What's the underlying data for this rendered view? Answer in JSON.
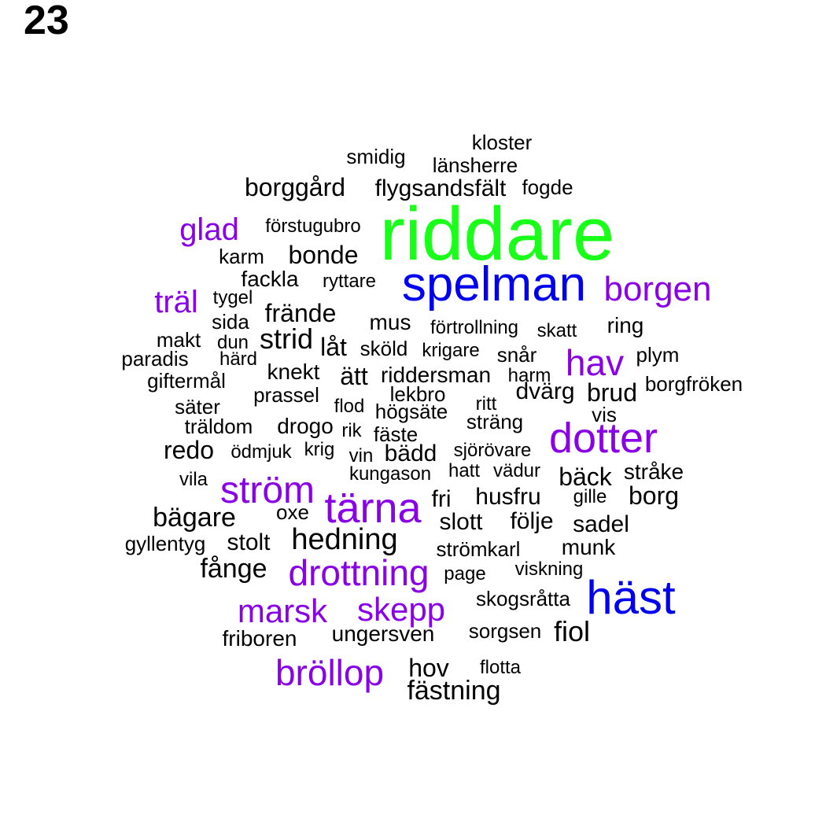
{
  "page_number": "23",
  "colors": {
    "green": "#1aff1a",
    "blue": "#0000ee",
    "purple": "#8a00e6",
    "black": "#000000"
  },
  "words": [
    {
      "text": "kloster",
      "size": "small",
      "color": "black"
    },
    {
      "text": "smidig",
      "size": "small",
      "color": "black"
    },
    {
      "text": "länsherre",
      "size": "small",
      "color": "black"
    },
    {
      "text": "borggård",
      "size": "medium",
      "color": "black"
    },
    {
      "text": "flygsandsfält",
      "size": "medium",
      "color": "black"
    },
    {
      "text": "fogde",
      "size": "small",
      "color": "black"
    },
    {
      "text": "riddare",
      "size": "xxlarge",
      "color": "green"
    },
    {
      "text": "glad",
      "size": "large",
      "color": "purple"
    },
    {
      "text": "förstugubro",
      "size": "small",
      "color": "black"
    },
    {
      "text": "karm",
      "size": "small",
      "color": "black"
    },
    {
      "text": "bonde",
      "size": "medium",
      "color": "black"
    },
    {
      "text": "spelman",
      "size": "xlarge",
      "color": "blue"
    },
    {
      "text": "fackla",
      "size": "medium",
      "color": "black"
    },
    {
      "text": "ryttare",
      "size": "small",
      "color": "black"
    },
    {
      "text": "träl",
      "size": "large",
      "color": "purple"
    },
    {
      "text": "borgen",
      "size": "large",
      "color": "purple"
    },
    {
      "text": "tygel",
      "size": "small",
      "color": "black"
    },
    {
      "text": "frände",
      "size": "medium",
      "color": "black"
    },
    {
      "text": "sida",
      "size": "small",
      "color": "black"
    },
    {
      "text": "mus",
      "size": "small",
      "color": "black"
    },
    {
      "text": "förtrollning",
      "size": "small",
      "color": "black"
    },
    {
      "text": "skatt",
      "size": "small",
      "color": "black"
    },
    {
      "text": "ring",
      "size": "small",
      "color": "black"
    },
    {
      "text": "makt",
      "size": "small",
      "color": "black"
    },
    {
      "text": "dun",
      "size": "small",
      "color": "black"
    },
    {
      "text": "strid",
      "size": "medium",
      "color": "black"
    },
    {
      "text": "låt",
      "size": "medium",
      "color": "black"
    },
    {
      "text": "sköld",
      "size": "small",
      "color": "black"
    },
    {
      "text": "krigare",
      "size": "small",
      "color": "black"
    },
    {
      "text": "snår",
      "size": "small",
      "color": "black"
    },
    {
      "text": "hav",
      "size": "large",
      "color": "purple"
    },
    {
      "text": "plym",
      "size": "small",
      "color": "black"
    },
    {
      "text": "paradis",
      "size": "small",
      "color": "black"
    },
    {
      "text": "härd",
      "size": "small",
      "color": "black"
    },
    {
      "text": "knekt",
      "size": "small",
      "color": "black"
    },
    {
      "text": "ätt",
      "size": "medium",
      "color": "black"
    },
    {
      "text": "riddersman",
      "size": "small",
      "color": "black"
    },
    {
      "text": "harm",
      "size": "small",
      "color": "black"
    },
    {
      "text": "giftermål",
      "size": "small",
      "color": "black"
    },
    {
      "text": "borgfröken",
      "size": "small",
      "color": "black"
    },
    {
      "text": "prassel",
      "size": "small",
      "color": "black"
    },
    {
      "text": "lekbro",
      "size": "small",
      "color": "black"
    },
    {
      "text": "dvärg",
      "size": "medium",
      "color": "black"
    },
    {
      "text": "brud",
      "size": "medium",
      "color": "black"
    },
    {
      "text": "säter",
      "size": "small",
      "color": "black"
    },
    {
      "text": "flod",
      "size": "small",
      "color": "black"
    },
    {
      "text": "högsäte",
      "size": "small",
      "color": "black"
    },
    {
      "text": "ritt",
      "size": "small",
      "color": "black"
    },
    {
      "text": "vis",
      "size": "small",
      "color": "black"
    },
    {
      "text": "träldom",
      "size": "small",
      "color": "black"
    },
    {
      "text": "drogo",
      "size": "small",
      "color": "black"
    },
    {
      "text": "rik",
      "size": "small",
      "color": "black"
    },
    {
      "text": "fäste",
      "size": "small",
      "color": "black"
    },
    {
      "text": "sträng",
      "size": "small",
      "color": "black"
    },
    {
      "text": "dotter",
      "size": "xlarge",
      "color": "purple"
    },
    {
      "text": "redo",
      "size": "medium",
      "color": "black"
    },
    {
      "text": "ödmjuk",
      "size": "small",
      "color": "black"
    },
    {
      "text": "krig",
      "size": "small",
      "color": "black"
    },
    {
      "text": "vin",
      "size": "small",
      "color": "black"
    },
    {
      "text": "bädd",
      "size": "medium",
      "color": "black"
    },
    {
      "text": "sjörövare",
      "size": "small",
      "color": "black"
    },
    {
      "text": "vila",
      "size": "small",
      "color": "black"
    },
    {
      "text": "kungason",
      "size": "small",
      "color": "black"
    },
    {
      "text": "hatt",
      "size": "small",
      "color": "black"
    },
    {
      "text": "vädur",
      "size": "small",
      "color": "black"
    },
    {
      "text": "bäck",
      "size": "medium",
      "color": "black"
    },
    {
      "text": "stråke",
      "size": "small",
      "color": "black"
    },
    {
      "text": "ström",
      "size": "large",
      "color": "purple"
    },
    {
      "text": "tärna",
      "size": "xlarge",
      "color": "purple"
    },
    {
      "text": "fri",
      "size": "medium",
      "color": "black"
    },
    {
      "text": "husfru",
      "size": "medium",
      "color": "black"
    },
    {
      "text": "gille",
      "size": "small",
      "color": "black"
    },
    {
      "text": "borg",
      "size": "medium",
      "color": "black"
    },
    {
      "text": "bägare",
      "size": "medium",
      "color": "black"
    },
    {
      "text": "oxe",
      "size": "small",
      "color": "black"
    },
    {
      "text": "slott",
      "size": "medium",
      "color": "black"
    },
    {
      "text": "följe",
      "size": "medium",
      "color": "black"
    },
    {
      "text": "sadel",
      "size": "medium",
      "color": "black"
    },
    {
      "text": "gyllentyg",
      "size": "small",
      "color": "black"
    },
    {
      "text": "stolt",
      "size": "medium",
      "color": "black"
    },
    {
      "text": "hedning",
      "size": "medium",
      "color": "black"
    },
    {
      "text": "strömkarl",
      "size": "small",
      "color": "black"
    },
    {
      "text": "munk",
      "size": "small",
      "color": "black"
    },
    {
      "text": "fånge",
      "size": "medium",
      "color": "black"
    },
    {
      "text": "drottning",
      "size": "large",
      "color": "purple"
    },
    {
      "text": "page",
      "size": "small",
      "color": "black"
    },
    {
      "text": "viskning",
      "size": "small",
      "color": "black"
    },
    {
      "text": "häst",
      "size": "xlarge",
      "color": "blue"
    },
    {
      "text": "marsk",
      "size": "large",
      "color": "purple"
    },
    {
      "text": "skepp",
      "size": "large",
      "color": "purple"
    },
    {
      "text": "skogsråtta",
      "size": "small",
      "color": "black"
    },
    {
      "text": "friboren",
      "size": "small",
      "color": "black"
    },
    {
      "text": "ungersven",
      "size": "small",
      "color": "black"
    },
    {
      "text": "sorgsen",
      "size": "small",
      "color": "black"
    },
    {
      "text": "fiol",
      "size": "medium",
      "color": "black"
    },
    {
      "text": "bröllop",
      "size": "large",
      "color": "purple"
    },
    {
      "text": "hov",
      "size": "medium",
      "color": "black"
    },
    {
      "text": "flotta",
      "size": "small",
      "color": "black"
    },
    {
      "text": "fästning",
      "size": "medium",
      "color": "black"
    }
  ]
}
